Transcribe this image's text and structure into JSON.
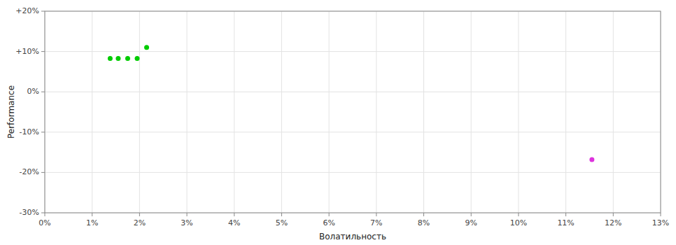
{
  "chart_data": {
    "type": "scatter",
    "xlabel": "Волатильность",
    "ylabel": "Performance",
    "xlim": [
      0.0,
      0.13
    ],
    "ylim": [
      -0.3,
      0.2
    ],
    "xticks": [
      {
        "value": 0.0,
        "label": "0%"
      },
      {
        "value": 0.01,
        "label": "1%"
      },
      {
        "value": 0.02,
        "label": "2%"
      },
      {
        "value": 0.03,
        "label": "3%"
      },
      {
        "value": 0.04,
        "label": "4%"
      },
      {
        "value": 0.05,
        "label": "5%"
      },
      {
        "value": 0.06,
        "label": "6%"
      },
      {
        "value": 0.07,
        "label": "7%"
      },
      {
        "value": 0.08,
        "label": "8%"
      },
      {
        "value": 0.09,
        "label": "9%"
      },
      {
        "value": 0.1,
        "label": "10%"
      },
      {
        "value": 0.11,
        "label": "11%"
      },
      {
        "value": 0.12,
        "label": "12%"
      },
      {
        "value": 0.13,
        "label": "13%"
      }
    ],
    "yticks": [
      {
        "value": -0.3,
        "label": "-30%"
      },
      {
        "value": -0.2,
        "label": "-20%"
      },
      {
        "value": -0.1,
        "label": "-10%"
      },
      {
        "value": 0.0,
        "label": "0%"
      },
      {
        "value": 0.1,
        "label": "+10%"
      },
      {
        "value": 0.2,
        "label": "+20%"
      }
    ],
    "grid": true,
    "series": [
      {
        "color": "#00cc00",
        "x": [
          0.0138,
          0.0155,
          0.0175,
          0.0195,
          0.0215
        ],
        "values": [
          0.083,
          0.083,
          0.083,
          0.083,
          0.11
        ]
      },
      {
        "color": "#dd33dd",
        "x": [
          0.1155
        ],
        "values": [
          -0.168
        ]
      }
    ]
  }
}
